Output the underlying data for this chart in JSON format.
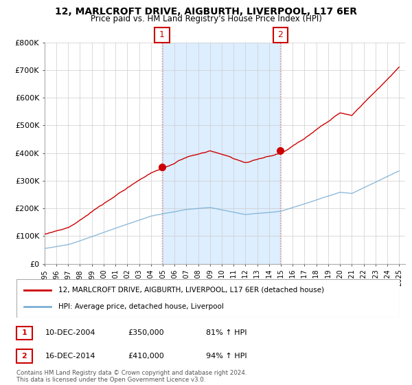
{
  "title": "12, MARLCROFT DRIVE, AIGBURTH, LIVERPOOL, L17 6ER",
  "subtitle": "Price paid vs. HM Land Registry's House Price Index (HPI)",
  "ylim": [
    0,
    800000
  ],
  "yticks": [
    0,
    100000,
    200000,
    300000,
    400000,
    500000,
    600000,
    700000,
    800000
  ],
  "sale1_date_num": 2004.94,
  "sale1_price": 350000,
  "sale1_label": "1",
  "sale2_date_num": 2014.96,
  "sale2_price": 410000,
  "sale2_label": "2",
  "red_line_color": "#cc0000",
  "blue_line_color": "#7bafd4",
  "vline_color": "#e08080",
  "bg_shade_color": "#ddeeff",
  "marker_color": "#cc0000",
  "legend_red_label": "12, MARLCROFT DRIVE, AIGBURTH, LIVERPOOL, L17 6ER (detached house)",
  "legend_blue_label": "HPI: Average price, detached house, Liverpool",
  "table_row1": [
    "1",
    "10-DEC-2004",
    "£350,000",
    "81% ↑ HPI"
  ],
  "table_row2": [
    "2",
    "16-DEC-2014",
    "£410,000",
    "94% ↑ HPI"
  ],
  "footer": "Contains HM Land Registry data © Crown copyright and database right 2024.\nThis data is licensed under the Open Government Licence v3.0."
}
